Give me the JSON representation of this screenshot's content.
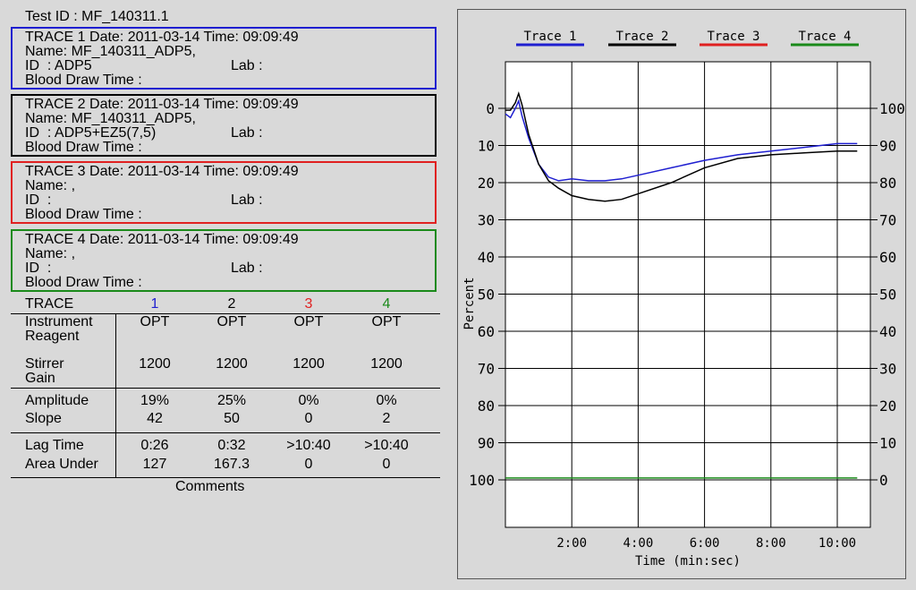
{
  "test_id_label": "Test ID : MF_140311.1",
  "traces": [
    {
      "header": "TRACE 1 Date: 2011-03-14 Time: 09:09:49",
      "name": "Name: MF_140311_ADP5,",
      "id": "ID  : ADP5",
      "lab": "Lab :",
      "blood": "Blood Draw Time :",
      "color": "#1f1fd0"
    },
    {
      "header": "TRACE 2 Date: 2011-03-14 Time: 09:09:49",
      "name": "Name: MF_140311_ADP5,",
      "id": "ID  : ADP5+EZ5(7,5)",
      "lab": "Lab :",
      "blood": "Blood Draw Time :",
      "color": "#000000"
    },
    {
      "header": "TRACE 3 Date: 2011-03-14 Time: 09:09:49",
      "name": "Name: ,",
      "id": "ID  :",
      "lab": "Lab :",
      "blood": "Blood Draw Time :",
      "color": "#e02020"
    },
    {
      "header": "TRACE 4 Date: 2011-03-14 Time: 09:09:49",
      "name": "Name: ,",
      "id": "ID  :",
      "lab": "Lab :",
      "blood": "Blood Draw Time :",
      "color": "#1a8a1a"
    }
  ],
  "results": {
    "trace_label": "TRACE",
    "trace_numbers": [
      "1",
      "2",
      "3",
      "4"
    ],
    "instrument_label": "Instrument",
    "reagent_label": "Reagent",
    "instrument_values": [
      "OPT",
      "OPT",
      "OPT",
      "OPT"
    ],
    "stirrer_label": "Stirrer",
    "gain_label": "Gain",
    "stirrer_values": [
      "1200",
      "1200",
      "1200",
      "1200"
    ],
    "amplitude_label": "Amplitude",
    "amplitude_values": [
      "19%",
      "25%",
      "0%",
      "0%"
    ],
    "slope_label": "Slope",
    "slope_values": [
      "42",
      "50",
      "0",
      "2"
    ],
    "lag_label": "Lag Time",
    "lag_values": [
      "0:26",
      "0:32",
      ">10:40",
      ">10:40"
    ],
    "area_label": "Area Under",
    "area_values": [
      "127",
      "167.3",
      "0",
      "0"
    ],
    "comments_label": "Comments"
  },
  "chart_data": {
    "type": "line",
    "xlabel": "Time (min:sec)",
    "ylabel": "Percent",
    "x_tick_labels": [
      "2:00",
      "4:00",
      "6:00",
      "8:00",
      "10:00"
    ],
    "x_ticks_min": [
      2,
      4,
      6,
      8,
      10
    ],
    "xlim": [
      0,
      11
    ],
    "ylim": [
      0,
      100
    ],
    "y_left_ticks": [
      "0",
      "10",
      "20",
      "30",
      "40",
      "50",
      "60",
      "70",
      "80",
      "90",
      "100"
    ],
    "y_right_ticks": [
      "100",
      "90",
      "80",
      "70",
      "60",
      "50",
      "40",
      "30",
      "20",
      "10",
      "0"
    ],
    "legend": [
      "Trace 1",
      "Trace 2",
      "Trace 3",
      "Trace 4"
    ],
    "legend_position": "top",
    "grid": true,
    "series": [
      {
        "name": "Trace 1",
        "color": "#1f1fd0",
        "x": [
          0,
          0.15,
          0.3,
          0.4,
          0.5,
          0.7,
          1.0,
          1.3,
          1.6,
          2.0,
          2.5,
          3.0,
          3.5,
          4.0,
          5.0,
          6.0,
          7.0,
          8.0,
          9.0,
          10.0,
          10.6
        ],
        "y": [
          1.5,
          2.5,
          0,
          -2,
          2,
          8,
          15,
          18.5,
          19.5,
          19,
          19.5,
          19.5,
          19,
          18,
          16,
          14,
          12.5,
          11.5,
          10.5,
          9.5,
          9.5
        ]
      },
      {
        "name": "Trace 2",
        "color": "#000000",
        "x": [
          0,
          0.15,
          0.3,
          0.4,
          0.5,
          0.7,
          1.0,
          1.3,
          1.6,
          2.0,
          2.5,
          3.0,
          3.5,
          4.0,
          5.0,
          6.0,
          7.0,
          8.0,
          9.0,
          10.0,
          10.6
        ],
        "y": [
          0.5,
          0.5,
          -1.5,
          -4,
          -1,
          7,
          15,
          19.5,
          21.5,
          23.5,
          24.5,
          25,
          24.5,
          23,
          20,
          16,
          13.5,
          12.5,
          12,
          11.5,
          11.5
        ]
      },
      {
        "name": "Trace 4",
        "color": "#1a8a1a",
        "x": [
          0,
          10.6
        ],
        "y": [
          99.5,
          99.5
        ]
      }
    ]
  }
}
